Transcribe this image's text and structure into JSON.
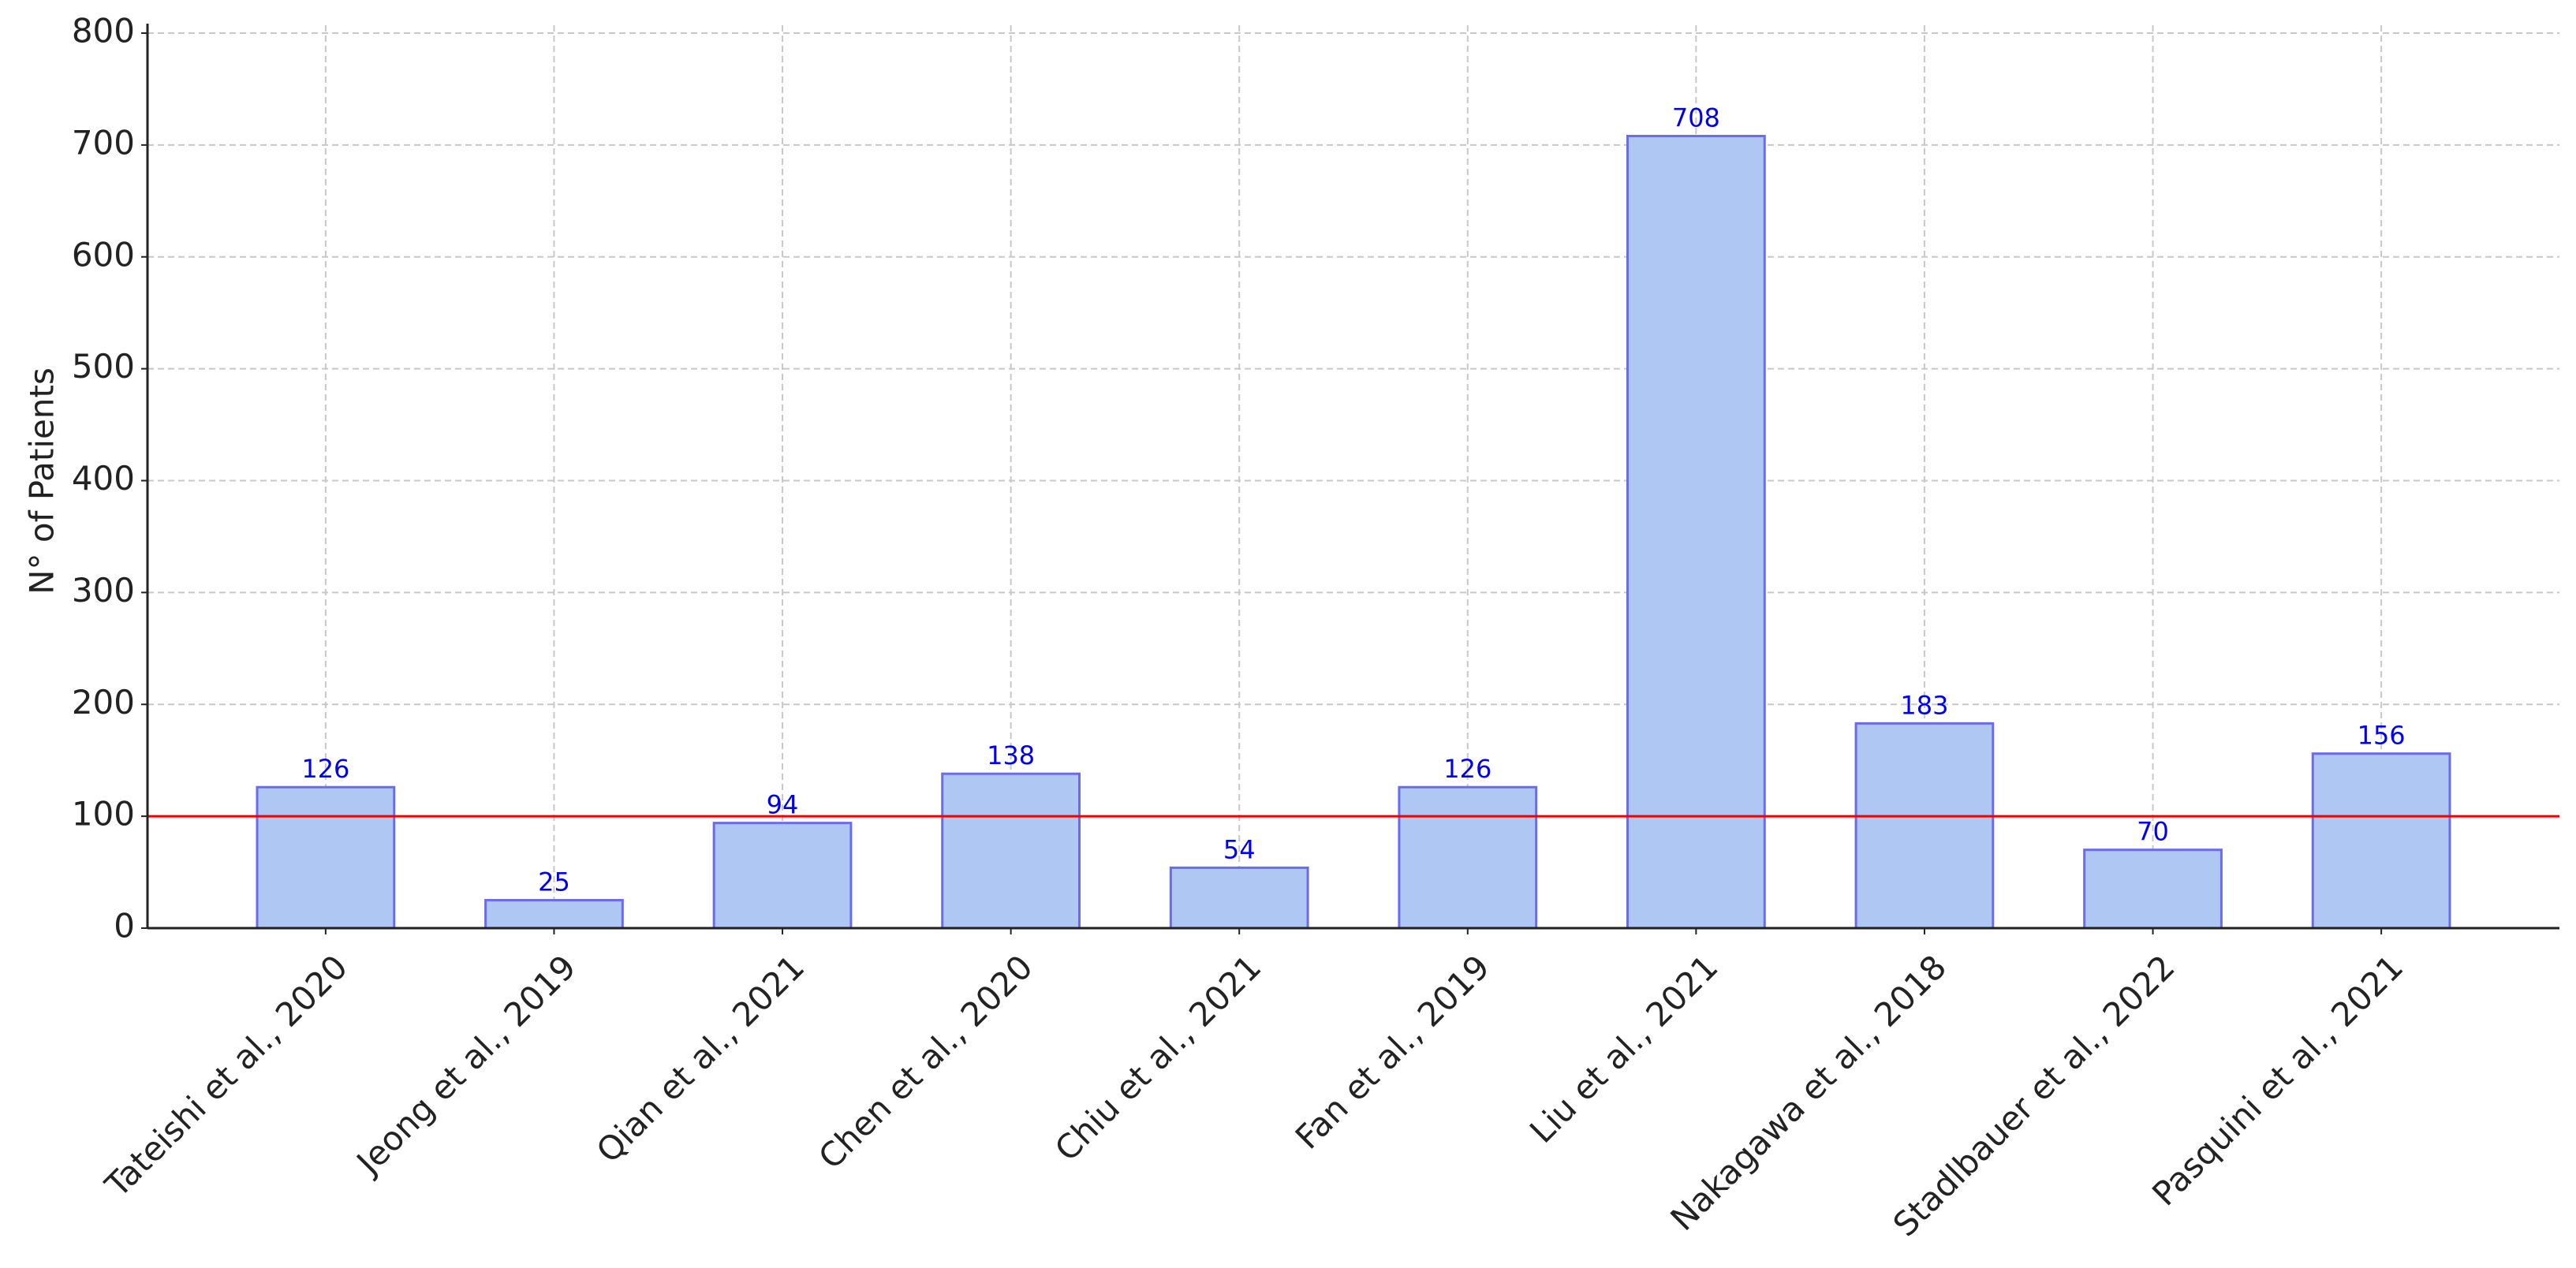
{
  "chart_data": {
    "type": "bar",
    "y_label": "N° of Patients",
    "categories": [
      "Tateishi et al., 2020",
      "Jeong et al., 2019",
      "Qian et al., 2021",
      "Chen et al., 2020",
      "Chiu et al., 2021",
      "Fan et al., 2019",
      "Liu et al., 2021",
      "Nakagawa et al., 2018",
      "Stadlbauer et al., 2022",
      "Pasquini et al., 2021"
    ],
    "values": [
      126,
      25,
      94,
      138,
      54,
      126,
      708,
      183,
      70,
      156
    ],
    "color": "#aec7f3",
    "edge_color": "#6b6bf0",
    "label_color": "#0000ee",
    "reference_line": {
      "value": 100,
      "color": "#ee0000"
    },
    "ylim": [
      0,
      800
    ],
    "yticks": [
      0,
      100,
      200,
      300,
      400,
      500,
      600,
      700,
      800
    ],
    "grid": true
  }
}
